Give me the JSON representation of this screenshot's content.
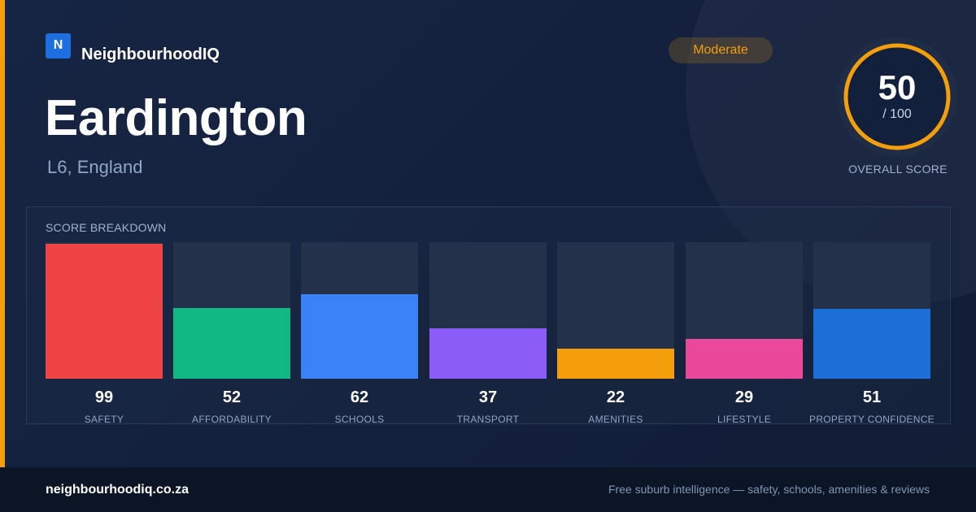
{
  "brand": {
    "logo_letter": "N",
    "name": "NeighbourhoodIQ",
    "accent": "#f59e0b",
    "logo_color": "#1d6fe0"
  },
  "header": {
    "title": "Eardington",
    "subtitle": "L6, England"
  },
  "badge": {
    "label": "Moderate",
    "color": "#f59e0b"
  },
  "overall": {
    "score": "50",
    "denominator": "/ 100",
    "label": "OVERALL SCORE",
    "value": 50,
    "max": 100,
    "ring_color": "#f59e0b"
  },
  "breakdown": {
    "title": "SCORE BREAKDOWN",
    "items": [
      {
        "label": "SAFETY",
        "value": 99,
        "color": "#ef4444"
      },
      {
        "label": "AFFORDABILITY",
        "value": 52,
        "color": "#10b981"
      },
      {
        "label": "SCHOOLS",
        "value": 62,
        "color": "#3b82f6"
      },
      {
        "label": "TRANSPORT",
        "value": 37,
        "color": "#8b5cf6"
      },
      {
        "label": "AMENITIES",
        "value": 22,
        "color": "#f59e0b"
      },
      {
        "label": "LIFESTYLE",
        "value": 29,
        "color": "#ec4899"
      },
      {
        "label": "PROPERTY CONFIDENCE",
        "value": 51,
        "color": "#1d6fd8"
      }
    ]
  },
  "footer": {
    "url": "neighbourhoodiq.co.za",
    "tagline": "Free suburb intelligence — safety, schools, amenities & reviews"
  }
}
